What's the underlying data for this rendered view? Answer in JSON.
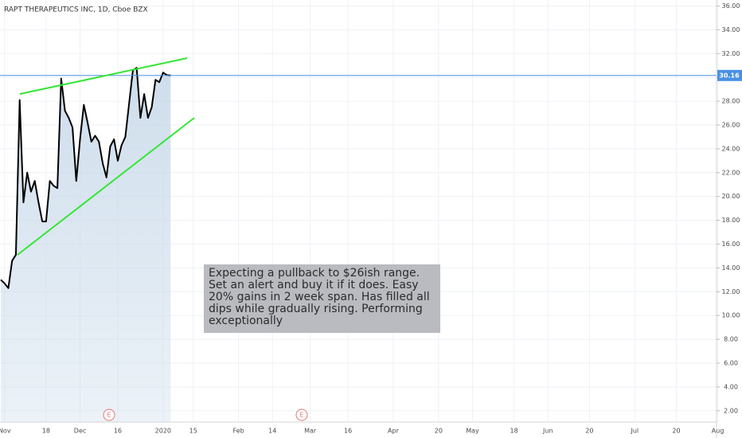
{
  "chart_data": {
    "type": "line",
    "title": "RAPT THERAPEUTICS INC, 1D, Cboe BZX",
    "categories": [
      null,
      "Nov",
      null,
      null,
      null,
      null,
      null,
      null,
      null,
      null,
      null,
      null,
      "18",
      null,
      null,
      null,
      null,
      null,
      null,
      null,
      null,
      "Dec",
      null,
      null,
      null,
      null,
      null,
      null,
      null,
      null,
      null,
      "16",
      null,
      null,
      null,
      null,
      null,
      null,
      null,
      null,
      null,
      null,
      null,
      "2020",
      null,
      null,
      null,
      null,
      null,
      null,
      null,
      "15",
      null,
      null,
      null,
      null,
      null,
      null,
      null,
      null,
      null,
      null,
      null,
      "Feb",
      null,
      null,
      null,
      null,
      null,
      null,
      null,
      null,
      "14",
      null,
      null,
      null,
      null,
      null,
      null,
      null,
      null,
      null,
      "Mar",
      null,
      null,
      null,
      null,
      null,
      null,
      null,
      null,
      null,
      "16",
      null,
      null,
      null,
      null,
      null,
      null,
      null,
      null,
      null,
      null,
      null,
      "Apr",
      null,
      null,
      null,
      null,
      null,
      null,
      null,
      null,
      null,
      null,
      null,
      "20",
      null,
      null,
      null,
      null,
      null,
      null,
      null,
      null,
      "May",
      null,
      null,
      null,
      null,
      null,
      null,
      null,
      null,
      null,
      null,
      "18",
      null,
      null,
      null,
      null,
      null,
      null,
      null,
      null,
      "Jun",
      null,
      null,
      null,
      null,
      null,
      null,
      null,
      null,
      null,
      null,
      "20",
      null,
      null,
      null,
      null,
      null,
      null,
      null,
      null,
      null,
      null,
      null,
      "Jul",
      null,
      null,
      null,
      null,
      null,
      null,
      null,
      null,
      null,
      null,
      "20",
      null,
      null,
      null,
      null,
      null,
      null,
      null,
      null,
      null,
      null,
      "Aug"
    ],
    "values": [
      13.0,
      12.7,
      12.3,
      14.6,
      15.1,
      28.1,
      19.5,
      22.0,
      20.4,
      21.3,
      19.5,
      17.9,
      17.9,
      21.3,
      20.9,
      20.7,
      29.9,
      27.2,
      26.6,
      25.8,
      21.3,
      24.8,
      27.7,
      26.2,
      24.6,
      25.1,
      24.6,
      22.8,
      21.6,
      24.2,
      24.8,
      23.0,
      24.3,
      25.0,
      27.8,
      30.6,
      30.8,
      26.6,
      28.6,
      26.6,
      27.5,
      29.8,
      29.6,
      30.4,
      30.2,
      30.16,
      null,
      null,
      null,
      null,
      null,
      null,
      null,
      null,
      null,
      null,
      null,
      null,
      null,
      null,
      null,
      null,
      null,
      null,
      null,
      null,
      null,
      null,
      null,
      null,
      null,
      null,
      null,
      null,
      null,
      null,
      null,
      null,
      null,
      null,
      null,
      null,
      null,
      null,
      null,
      null,
      null,
      null,
      null,
      null,
      null,
      null,
      null,
      null,
      null,
      null,
      null,
      null,
      null,
      null,
      null,
      null,
      null,
      null,
      null,
      null,
      null,
      null,
      null,
      null,
      null,
      null,
      null,
      null,
      null,
      null,
      null,
      null,
      null,
      null,
      null,
      null,
      null,
      null,
      null,
      null,
      null,
      null,
      null,
      null,
      null,
      null,
      null,
      null,
      null,
      null,
      null,
      null,
      null,
      null,
      null,
      null,
      null,
      null,
      null,
      null,
      null,
      null,
      null,
      null,
      null,
      null,
      null,
      null,
      null,
      null,
      null,
      null,
      null,
      null,
      null,
      null,
      null,
      null,
      null,
      null,
      null,
      null,
      null,
      null,
      null,
      null,
      null,
      null,
      null,
      null,
      null,
      null,
      null,
      null,
      null,
      null,
      null,
      null,
      null,
      null,
      null,
      null,
      null,
      null,
      null
    ],
    "color": "#000000",
    "fill_color": "#c9daea",
    "price_line_color": "#4a90e2",
    "ylim": [
      1.05,
      36.5
    ],
    "yticks": [
      {
        "value": 2,
        "label": "2.00"
      },
      {
        "value": 4,
        "label": "4.00"
      },
      {
        "value": 6,
        "label": "6.00"
      },
      {
        "value": 8,
        "label": "8.00"
      },
      {
        "value": 10,
        "label": "10.00"
      },
      {
        "value": 12,
        "label": "12.00"
      },
      {
        "value": 14,
        "label": "14.00"
      },
      {
        "value": 16,
        "label": "16.00"
      },
      {
        "value": 18,
        "label": "18.00"
      },
      {
        "value": 20,
        "label": "20.00"
      },
      {
        "value": 22,
        "label": "22.00"
      },
      {
        "value": 24,
        "label": "24.00"
      },
      {
        "value": 26,
        "label": "26.00"
      },
      {
        "value": 28,
        "label": "28.00"
      },
      {
        "value": 30,
        "label": "30.00"
      },
      {
        "value": 32,
        "label": "32.00"
      },
      {
        "value": 34,
        "label": "34.00"
      },
      {
        "value": 36,
        "label": "36.00"
      }
    ],
    "grid": true,
    "events": [
      "E",
      "E"
    ],
    "annotations": [
      "Expecting a pullback to $26ish range. Set an alert and buy it if it does. Easy 20% gains in 2 week span. Has filled all dips while gradually rising. Performing exceptionally"
    ]
  }
}
